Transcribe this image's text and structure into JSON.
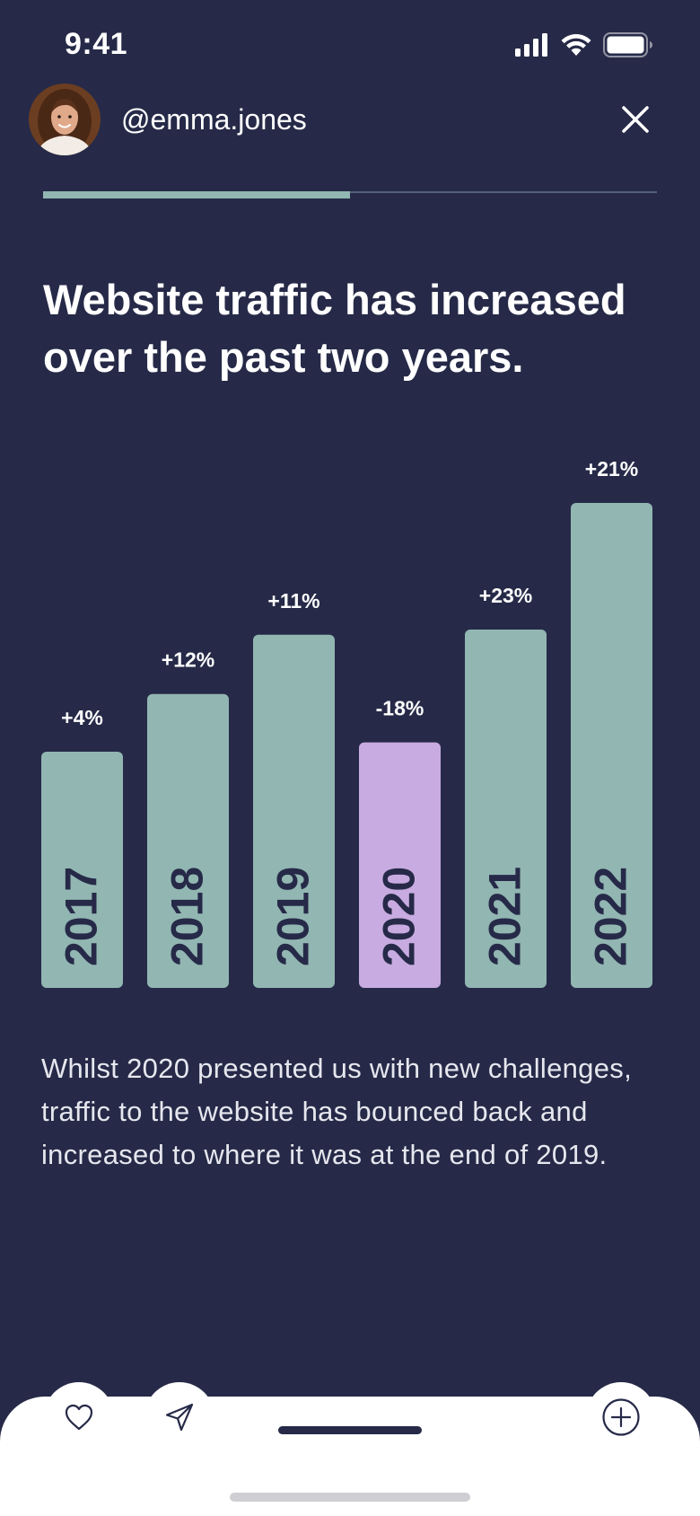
{
  "status_bar": {
    "time": "9:41",
    "icons": [
      "signal-icon",
      "wifi-icon",
      "battery-icon"
    ]
  },
  "header": {
    "username": "@emma.jones",
    "close_icon": "close-icon"
  },
  "story_progress": {
    "fraction": 0.5,
    "color": "#92b6b2"
  },
  "headline": "Website traffic has increased over the past two years.",
  "chart_data": {
    "type": "bar",
    "title": "",
    "xlabel": "",
    "ylabel": "",
    "categories": [
      "2017",
      "2018",
      "2019",
      "2020",
      "2021",
      "2022"
    ],
    "values": [
      4,
      12,
      11,
      -18,
      23,
      21
    ],
    "value_labels": [
      "+4%",
      "+12%",
      "+11%",
      "-18%",
      "+23%",
      "+21%"
    ],
    "bar_colors": [
      "#92b6b2",
      "#92b6b2",
      "#92b6b2",
      "#c8abe0",
      "#92b6b2",
      "#92b6b2"
    ],
    "highlight_category": "2020",
    "grid": false,
    "legend": "none"
  },
  "body_text": "Whilst 2020 presented us with new challenges, traffic to the website has bounced back and increased to where it was at the end of 2019.",
  "bottom_bar": {
    "actions": [
      "heart-icon",
      "send-icon",
      "plus-circle-icon"
    ]
  },
  "colors": {
    "background": "#262a48",
    "bar_default": "#92b6b2",
    "bar_highlight": "#c8abe0",
    "bar_text": "#262a48",
    "sheet": "#ffffff"
  }
}
